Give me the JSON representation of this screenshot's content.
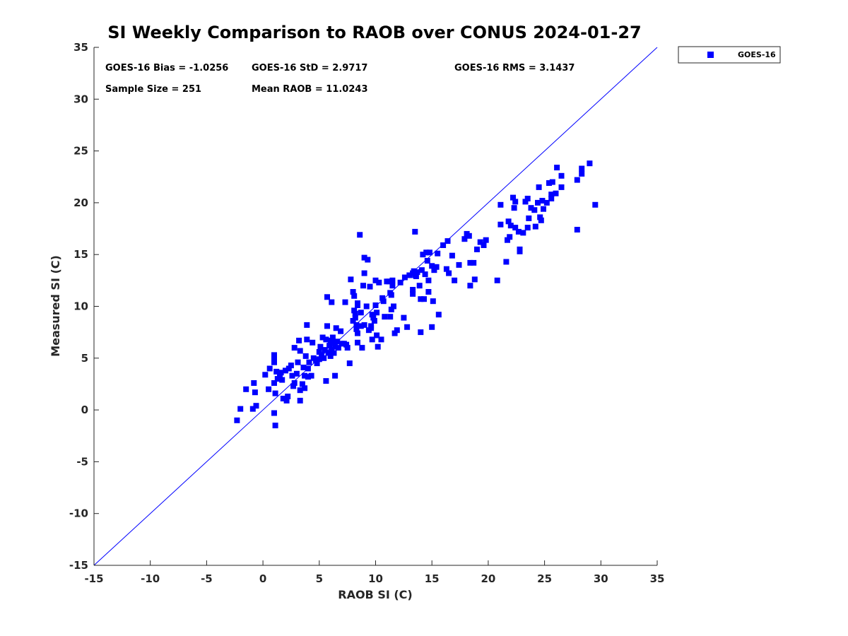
{
  "chart_data": {
    "type": "scatter",
    "title": "SI Weekly Comparison to RAOB over CONUS 2024-01-27",
    "xlabel": "RAOB SI (C)",
    "ylabel": "Measured SI (C)",
    "xlim": [
      -15,
      35
    ],
    "ylim": [
      -15,
      35
    ],
    "xticks": [
      "-15",
      "-10",
      "-5",
      "0",
      "5",
      "10",
      "15",
      "20",
      "25",
      "30",
      "35"
    ],
    "yticks": [
      "-15",
      "-10",
      "-5",
      "0",
      "5",
      "10",
      "15",
      "20",
      "25",
      "30",
      "35"
    ],
    "grid": false,
    "legend_position": "outside-top-right",
    "reference_line": {
      "name": "1:1 line",
      "color": "#0000ff"
    },
    "stats": {
      "bias": "GOES-16 Bias = -1.0256",
      "std": "GOES-16 StD = 2.9717",
      "rms": "GOES-16 RMS = 3.1437",
      "sample_size": "Sample Size = 251",
      "mean_raob": "Mean RAOB = 11.0243"
    },
    "series": [
      {
        "name": "GOES-16",
        "color": "#0000ff",
        "marker": "square",
        "points": [
          [
            -2.3,
            -1.0
          ],
          [
            -2.0,
            0.1
          ],
          [
            -1.5,
            2.0
          ],
          [
            -0.9,
            0.1
          ],
          [
            -0.8,
            2.6
          ],
          [
            -0.7,
            1.7
          ],
          [
            -0.6,
            0.4
          ],
          [
            0.2,
            3.4
          ],
          [
            0.5,
            2.0
          ],
          [
            0.6,
            4.0
          ],
          [
            1.0,
            4.6
          ],
          [
            1.0,
            5.0
          ],
          [
            1.0,
            5.3
          ],
          [
            1.0,
            -0.3
          ],
          [
            1.0,
            2.6
          ],
          [
            1.1,
            -1.5
          ],
          [
            1.1,
            1.6
          ],
          [
            1.2,
            3.7
          ],
          [
            1.3,
            3.0
          ],
          [
            1.5,
            3.4
          ],
          [
            1.6,
            3.6
          ],
          [
            1.7,
            2.9
          ],
          [
            1.8,
            1.1
          ],
          [
            2.0,
            3.8
          ],
          [
            2.1,
            0.9
          ],
          [
            2.2,
            1.3
          ],
          [
            2.3,
            4.0
          ],
          [
            2.5,
            4.3
          ],
          [
            2.6,
            3.3
          ],
          [
            2.7,
            2.3
          ],
          [
            2.8,
            2.6
          ],
          [
            2.8,
            6.0
          ],
          [
            3.0,
            3.5
          ],
          [
            3.1,
            4.6
          ],
          [
            3.2,
            6.7
          ],
          [
            3.3,
            5.7
          ],
          [
            3.3,
            1.9
          ],
          [
            3.3,
            0.9
          ],
          [
            3.5,
            2.5
          ],
          [
            3.6,
            4.1
          ],
          [
            3.7,
            2.1
          ],
          [
            3.7,
            3.3
          ],
          [
            3.8,
            5.2
          ],
          [
            3.9,
            8.2
          ],
          [
            3.9,
            6.8
          ],
          [
            4.0,
            4.0
          ],
          [
            4.0,
            3.2
          ],
          [
            4.1,
            4.6
          ],
          [
            4.3,
            3.3
          ],
          [
            4.4,
            6.5
          ],
          [
            4.5,
            5.0
          ],
          [
            4.7,
            4.8
          ],
          [
            4.8,
            4.5
          ],
          [
            5.0,
            5.6
          ],
          [
            5.0,
            4.9
          ],
          [
            5.1,
            6.1
          ],
          [
            5.2,
            5.3
          ],
          [
            5.3,
            7.0
          ],
          [
            5.4,
            5.0
          ],
          [
            5.5,
            5.8
          ],
          [
            5.6,
            2.8
          ],
          [
            5.6,
            6.8
          ],
          [
            5.7,
            8.1
          ],
          [
            5.7,
            10.9
          ],
          [
            5.8,
            5.5
          ],
          [
            5.9,
            6.2
          ],
          [
            6.0,
            5.2
          ],
          [
            6.0,
            6.7
          ],
          [
            6.1,
            10.4
          ],
          [
            6.1,
            5.8
          ],
          [
            6.2,
            7.0
          ],
          [
            6.2,
            6.5
          ],
          [
            6.3,
            5.5
          ],
          [
            6.4,
            6.1
          ],
          [
            6.4,
            3.3
          ],
          [
            6.5,
            7.9
          ],
          [
            6.6,
            6.6
          ],
          [
            6.7,
            6.0
          ],
          [
            6.9,
            7.6
          ],
          [
            7.0,
            6.4
          ],
          [
            7.2,
            6.4
          ],
          [
            7.3,
            10.4
          ],
          [
            7.4,
            6.3
          ],
          [
            7.5,
            6.0
          ],
          [
            7.7,
            4.5
          ],
          [
            7.8,
            12.6
          ],
          [
            8.0,
            11.4
          ],
          [
            8.0,
            8.6
          ],
          [
            8.1,
            11.0
          ],
          [
            8.1,
            9.6
          ],
          [
            8.2,
            9.3
          ],
          [
            8.2,
            8.9
          ],
          [
            8.3,
            8.2
          ],
          [
            8.3,
            7.8
          ],
          [
            8.4,
            10.3
          ],
          [
            8.4,
            10.1
          ],
          [
            8.4,
            7.4
          ],
          [
            8.4,
            6.5
          ],
          [
            8.6,
            16.9
          ],
          [
            8.7,
            9.4
          ],
          [
            8.7,
            8.1
          ],
          [
            8.8,
            6.0
          ],
          [
            8.9,
            12.0
          ],
          [
            9.0,
            14.7
          ],
          [
            9.0,
            13.2
          ],
          [
            9.0,
            8.2
          ],
          [
            9.2,
            10.0
          ],
          [
            9.3,
            14.5
          ],
          [
            9.4,
            7.7
          ],
          [
            9.5,
            11.9
          ],
          [
            9.6,
            8.1
          ],
          [
            9.6,
            7.9
          ],
          [
            9.7,
            9.2
          ],
          [
            9.7,
            6.8
          ],
          [
            9.8,
            8.9
          ],
          [
            9.9,
            8.6
          ],
          [
            10.0,
            12.5
          ],
          [
            10.0,
            10.1
          ],
          [
            10.1,
            9.4
          ],
          [
            10.1,
            7.2
          ],
          [
            10.2,
            6.1
          ],
          [
            10.3,
            12.3
          ],
          [
            10.5,
            6.8
          ],
          [
            10.6,
            10.8
          ],
          [
            10.7,
            10.5
          ],
          [
            10.8,
            9.0
          ],
          [
            11.0,
            12.4
          ],
          [
            11.2,
            12.4
          ],
          [
            11.3,
            9.0
          ],
          [
            11.3,
            11.3
          ],
          [
            11.4,
            11.1
          ],
          [
            11.4,
            9.7
          ],
          [
            11.5,
            12.0
          ],
          [
            11.5,
            12.5
          ],
          [
            11.6,
            10.0
          ],
          [
            11.7,
            7.4
          ],
          [
            11.9,
            7.7
          ],
          [
            12.2,
            12.3
          ],
          [
            12.5,
            8.9
          ],
          [
            12.6,
            12.8
          ],
          [
            12.8,
            8.0
          ],
          [
            13.0,
            13.0
          ],
          [
            13.3,
            13.2
          ],
          [
            13.3,
            11.2
          ],
          [
            13.3,
            11.6
          ],
          [
            13.4,
            13.4
          ],
          [
            13.5,
            17.2
          ],
          [
            13.5,
            13.0
          ],
          [
            13.6,
            12.9
          ],
          [
            13.7,
            13.3
          ],
          [
            13.9,
            12.0
          ],
          [
            14.0,
            10.7
          ],
          [
            14.0,
            7.5
          ],
          [
            14.1,
            13.5
          ],
          [
            14.2,
            15.0
          ],
          [
            14.3,
            10.7
          ],
          [
            14.4,
            13.1
          ],
          [
            14.5,
            15.2
          ],
          [
            14.6,
            14.4
          ],
          [
            14.7,
            11.4
          ],
          [
            14.7,
            12.5
          ],
          [
            14.8,
            15.2
          ],
          [
            15.0,
            8.0
          ],
          [
            15.0,
            13.9
          ],
          [
            15.1,
            10.5
          ],
          [
            15.2,
            13.5
          ],
          [
            15.4,
            13.8
          ],
          [
            15.5,
            15.1
          ],
          [
            15.6,
            9.2
          ],
          [
            16.0,
            15.9
          ],
          [
            16.3,
            13.6
          ],
          [
            16.4,
            16.3
          ],
          [
            16.5,
            13.2
          ],
          [
            16.8,
            14.9
          ],
          [
            17.0,
            12.5
          ],
          [
            17.4,
            14.0
          ],
          [
            17.9,
            16.5
          ],
          [
            18.1,
            17.0
          ],
          [
            18.3,
            16.8
          ],
          [
            18.4,
            14.2
          ],
          [
            18.4,
            12.0
          ],
          [
            18.7,
            14.2
          ],
          [
            18.8,
            12.6
          ],
          [
            19.0,
            15.5
          ],
          [
            19.3,
            16.2
          ],
          [
            19.6,
            15.9
          ],
          [
            19.8,
            16.4
          ],
          [
            20.8,
            12.5
          ],
          [
            21.1,
            19.8
          ],
          [
            21.1,
            17.9
          ],
          [
            21.6,
            14.3
          ],
          [
            21.7,
            16.4
          ],
          [
            21.8,
            18.2
          ],
          [
            21.9,
            16.7
          ],
          [
            22.0,
            17.8
          ],
          [
            22.2,
            20.5
          ],
          [
            22.3,
            19.5
          ],
          [
            22.4,
            20.1
          ],
          [
            22.4,
            17.6
          ],
          [
            22.7,
            17.2
          ],
          [
            22.8,
            15.5
          ],
          [
            22.8,
            15.3
          ],
          [
            23.1,
            17.1
          ],
          [
            23.3,
            20.1
          ],
          [
            23.5,
            20.4
          ],
          [
            23.5,
            17.6
          ],
          [
            23.6,
            18.5
          ],
          [
            23.8,
            19.5
          ],
          [
            24.1,
            19.3
          ],
          [
            24.2,
            17.7
          ],
          [
            24.4,
            20.0
          ],
          [
            24.5,
            21.5
          ],
          [
            24.6,
            18.6
          ],
          [
            24.7,
            18.3
          ],
          [
            24.8,
            20.2
          ],
          [
            24.9,
            19.4
          ],
          [
            25.2,
            20.0
          ],
          [
            25.4,
            21.9
          ],
          [
            25.6,
            20.4
          ],
          [
            25.6,
            20.8
          ],
          [
            25.7,
            22.0
          ],
          [
            26.0,
            20.9
          ],
          [
            26.1,
            23.4
          ],
          [
            26.5,
            21.5
          ],
          [
            26.5,
            22.6
          ],
          [
            27.9,
            22.2
          ],
          [
            27.9,
            17.4
          ],
          [
            28.3,
            22.8
          ],
          [
            28.3,
            23.3
          ],
          [
            29.0,
            23.8
          ],
          [
            29.5,
            19.8
          ]
        ]
      }
    ]
  }
}
